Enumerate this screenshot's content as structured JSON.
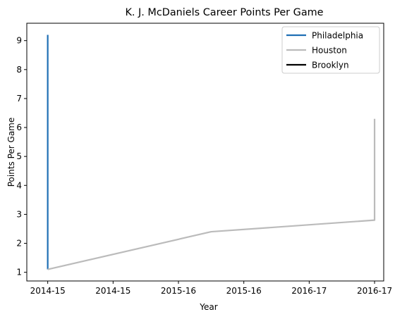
{
  "chart_data": {
    "type": "line",
    "title": "K. J. McDaniels Career Points Per Game",
    "xlabel": "Year",
    "ylabel": "Points Per Game",
    "x_tick_labels": [
      "2014-15",
      "2014-15",
      "2015-16",
      "2015-16",
      "2016-17",
      "2016-17"
    ],
    "x_tick_positions": [
      0,
      0.5,
      1,
      1.5,
      2,
      2.5
    ],
    "xlim": [
      -0.16,
      2.57
    ],
    "y_ticks": [
      1,
      2,
      3,
      4,
      5,
      6,
      7,
      8,
      9
    ],
    "ylim": [
      0.7,
      9.6
    ],
    "legend_position": "upper right",
    "grid": false,
    "series": [
      {
        "name": "Philadelphia",
        "color": "#1f6fb4",
        "x": [
          0,
          0
        ],
        "y": [
          9.2,
          1.1
        ]
      },
      {
        "name": "Houston",
        "color": "#bbbbbb",
        "x": [
          0,
          1.25,
          2.5,
          2.5
        ],
        "y": [
          1.1,
          2.4,
          2.8,
          6.3
        ]
      },
      {
        "name": "Brooklyn",
        "color": "#000000",
        "x": [],
        "y": []
      }
    ]
  }
}
